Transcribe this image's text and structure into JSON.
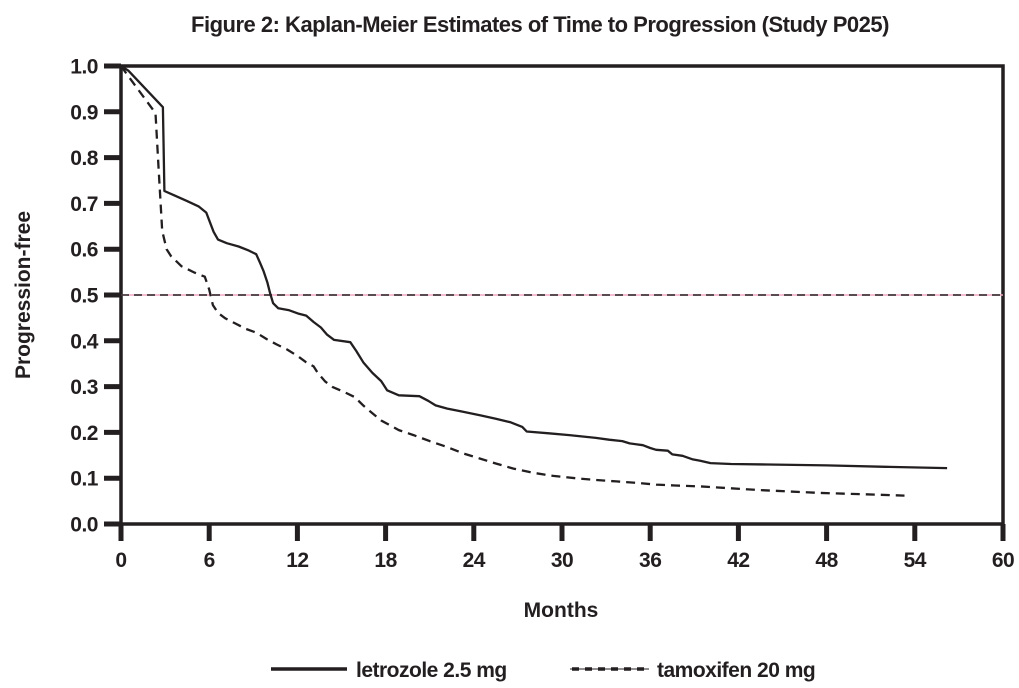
{
  "title": "Figure 2: Kaplan-Meier Estimates of Time to Progression (Study P025)",
  "colors": {
    "ink": "#231f20",
    "reference_pink": "#f2a7c4",
    "background": "#ffffff"
  },
  "chart_data": {
    "type": "line",
    "subtype": "kaplan-meier",
    "title": "Figure 2: Kaplan-Meier Estimates of Time to Progression (Study P025)",
    "xlabel": "Months",
    "ylabel": "Progression-free",
    "xlim": [
      0,
      60
    ],
    "ylim": [
      0.0,
      1.0
    ],
    "xticks": [
      0,
      6,
      12,
      18,
      24,
      30,
      36,
      42,
      48,
      54,
      60
    ],
    "yticks": [
      0.0,
      0.1,
      0.2,
      0.3,
      0.4,
      0.5,
      0.6,
      0.7,
      0.8,
      0.9,
      1.0
    ],
    "grid": false,
    "legend_position": "bottom",
    "reference_line": {
      "y": 0.5,
      "style": "dashed-black-pink"
    },
    "series": [
      {
        "name": "letrozole 2.5 mg",
        "line_style": "solid",
        "color": "#231f20",
        "points": [
          [
            0,
            1.0
          ],
          [
            0.5,
            0.99
          ],
          [
            2.85,
            0.91
          ],
          [
            2.95,
            0.727
          ],
          [
            3.6,
            0.718
          ],
          [
            4.5,
            0.705
          ],
          [
            5.3,
            0.693
          ],
          [
            5.8,
            0.68
          ],
          [
            6.0,
            0.663
          ],
          [
            6.3,
            0.638
          ],
          [
            6.6,
            0.621
          ],
          [
            7.2,
            0.613
          ],
          [
            8.0,
            0.606
          ],
          [
            8.7,
            0.597
          ],
          [
            9.2,
            0.589
          ],
          [
            9.45,
            0.571
          ],
          [
            9.7,
            0.552
          ],
          [
            9.95,
            0.528
          ],
          [
            10.15,
            0.503
          ],
          [
            10.35,
            0.482
          ],
          [
            10.7,
            0.471
          ],
          [
            11.4,
            0.467
          ],
          [
            12.1,
            0.459
          ],
          [
            12.6,
            0.455
          ],
          [
            13.1,
            0.441
          ],
          [
            13.6,
            0.429
          ],
          [
            14.0,
            0.414
          ],
          [
            14.5,
            0.402
          ],
          [
            15.6,
            0.397
          ],
          [
            16.0,
            0.378
          ],
          [
            16.5,
            0.352
          ],
          [
            17.1,
            0.33
          ],
          [
            17.7,
            0.312
          ],
          [
            18.1,
            0.292
          ],
          [
            18.9,
            0.281
          ],
          [
            20.3,
            0.279
          ],
          [
            20.9,
            0.269
          ],
          [
            21.4,
            0.259
          ],
          [
            22.2,
            0.252
          ],
          [
            23.1,
            0.246
          ],
          [
            24.5,
            0.237
          ],
          [
            25.5,
            0.23
          ],
          [
            26.5,
            0.222
          ],
          [
            27.3,
            0.212
          ],
          [
            27.6,
            0.202
          ],
          [
            29.1,
            0.198
          ],
          [
            30.5,
            0.194
          ],
          [
            31.4,
            0.191
          ],
          [
            32.3,
            0.188
          ],
          [
            33.2,
            0.184
          ],
          [
            34.1,
            0.181
          ],
          [
            34.6,
            0.176
          ],
          [
            35.5,
            0.172
          ],
          [
            36.0,
            0.166
          ],
          [
            36.4,
            0.162
          ],
          [
            37.2,
            0.16
          ],
          [
            37.5,
            0.152
          ],
          [
            38.2,
            0.149
          ],
          [
            38.9,
            0.141
          ],
          [
            39.4,
            0.138
          ],
          [
            40.1,
            0.133
          ],
          [
            41.5,
            0.131
          ],
          [
            44.0,
            0.13
          ],
          [
            48.0,
            0.128
          ],
          [
            52.0,
            0.125
          ],
          [
            56.2,
            0.122
          ]
        ]
      },
      {
        "name": "tamoxifen 20 mg",
        "line_style": "dashed",
        "color": "#231f20",
        "points": [
          [
            0,
            1.0
          ],
          [
            0.4,
            0.982
          ],
          [
            2.35,
            0.897
          ],
          [
            2.55,
            0.78
          ],
          [
            2.8,
            0.64
          ],
          [
            3.1,
            0.6
          ],
          [
            3.4,
            0.585
          ],
          [
            4.1,
            0.563
          ],
          [
            5.0,
            0.549
          ],
          [
            5.7,
            0.54
          ],
          [
            6.0,
            0.512
          ],
          [
            6.25,
            0.478
          ],
          [
            6.6,
            0.461
          ],
          [
            7.1,
            0.449
          ],
          [
            7.7,
            0.439
          ],
          [
            8.5,
            0.426
          ],
          [
            9.2,
            0.418
          ],
          [
            9.9,
            0.404
          ],
          [
            10.6,
            0.392
          ],
          [
            11.3,
            0.381
          ],
          [
            12.0,
            0.367
          ],
          [
            12.6,
            0.353
          ],
          [
            13.1,
            0.344
          ],
          [
            13.4,
            0.329
          ],
          [
            13.9,
            0.311
          ],
          [
            14.4,
            0.299
          ],
          [
            15.2,
            0.288
          ],
          [
            15.9,
            0.277
          ],
          [
            16.5,
            0.258
          ],
          [
            17.1,
            0.242
          ],
          [
            17.7,
            0.226
          ],
          [
            18.9,
            0.205
          ],
          [
            19.9,
            0.194
          ],
          [
            21.0,
            0.181
          ],
          [
            22.1,
            0.169
          ],
          [
            23.3,
            0.154
          ],
          [
            24.4,
            0.143
          ],
          [
            25.5,
            0.132
          ],
          [
            26.7,
            0.121
          ],
          [
            28.0,
            0.112
          ],
          [
            29.4,
            0.105
          ],
          [
            30.9,
            0.1
          ],
          [
            32.3,
            0.096
          ],
          [
            33.7,
            0.093
          ],
          [
            35.0,
            0.09
          ],
          [
            36.4,
            0.086
          ],
          [
            37.7,
            0.084
          ],
          [
            39.4,
            0.082
          ],
          [
            41.5,
            0.078
          ],
          [
            43.5,
            0.074
          ],
          [
            45.5,
            0.071
          ],
          [
            47.5,
            0.068
          ],
          [
            49.5,
            0.066
          ],
          [
            51.5,
            0.064
          ],
          [
            53.3,
            0.062
          ]
        ]
      }
    ]
  },
  "legend": {
    "items": [
      {
        "label": "letrozole 2.5 mg",
        "swatch": "solid-line"
      },
      {
        "label": "tamoxifen 20 mg",
        "swatch": "dashed-line"
      }
    ]
  }
}
